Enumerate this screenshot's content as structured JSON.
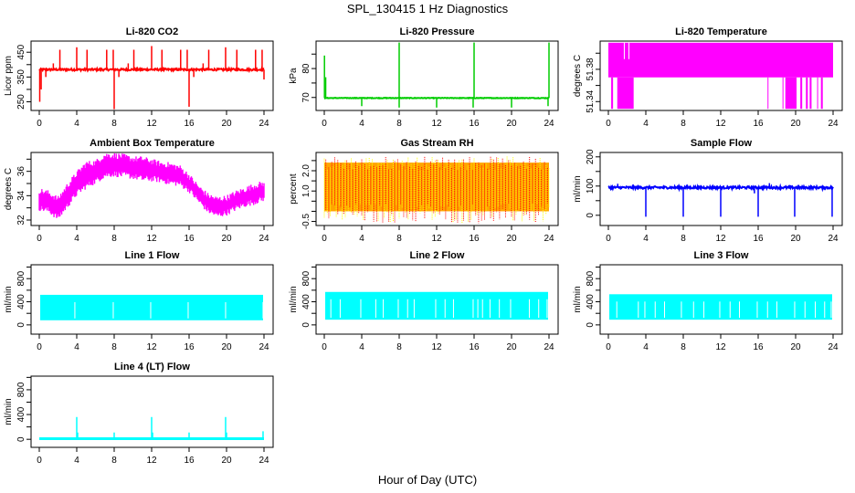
{
  "page": {
    "title": "SPL_130415  1 Hz Diagnostics",
    "xlabel": "Hour of Day (UTC)"
  },
  "chart_data": [
    {
      "type": "line",
      "title": "Li-820 CO2",
      "ylabel": "Licor ppm",
      "color": "#ff0000",
      "xlim": [
        0,
        24
      ],
      "xticks": [
        0,
        4,
        8,
        12,
        16,
        20,
        24
      ],
      "ylim": [
        215,
        495
      ],
      "yticks": [
        250,
        300,
        350,
        400,
        450
      ],
      "yticklabels": [
        "250",
        "",
        "350",
        "",
        "450"
      ],
      "baseline": 380,
      "noise": 4,
      "spikes": [
        {
          "x": 0.05,
          "y": 250
        },
        {
          "x": 0.2,
          "y": 300
        },
        {
          "x": 2.2,
          "y": 460
        },
        {
          "x": 4.0,
          "y": 470
        },
        {
          "x": 5.1,
          "y": 460
        },
        {
          "x": 7.2,
          "y": 460
        },
        {
          "x": 7.9,
          "y": 460
        },
        {
          "x": 8.0,
          "y": 220
        },
        {
          "x": 10.1,
          "y": 460
        },
        {
          "x": 12.0,
          "y": 475
        },
        {
          "x": 13.1,
          "y": 460
        },
        {
          "x": 15.1,
          "y": 460
        },
        {
          "x": 15.8,
          "y": 460
        },
        {
          "x": 16.0,
          "y": 230
        },
        {
          "x": 18.1,
          "y": 460
        },
        {
          "x": 19.9,
          "y": 470
        },
        {
          "x": 21.1,
          "y": 460
        },
        {
          "x": 23.1,
          "y": 460
        },
        {
          "x": 23.8,
          "y": 460
        },
        {
          "x": 24.0,
          "y": 340
        },
        {
          "x": 1.5,
          "y": 405
        },
        {
          "x": 9.5,
          "y": 405
        },
        {
          "x": 17.5,
          "y": 405
        },
        {
          "x": 0.7,
          "y": 350
        },
        {
          "x": 8.5,
          "y": 350
        },
        {
          "x": 16.5,
          "y": 350
        }
      ]
    },
    {
      "type": "line",
      "title": "Li-820 Pressure",
      "ylabel": "kPa",
      "color": "#00cc00",
      "xlim": [
        0,
        24
      ],
      "xticks": [
        0,
        4,
        8,
        12,
        16,
        20,
        24
      ],
      "ylim": [
        65.5,
        89.5
      ],
      "yticks": [
        70,
        75,
        80,
        85
      ],
      "yticklabels": [
        "70",
        "",
        "80",
        ""
      ],
      "baseline": 69.8,
      "noise": 0.1,
      "spikes": [
        {
          "x": 0.02,
          "y": 84.5
        },
        {
          "x": 0.15,
          "y": 77
        },
        {
          "x": 8.0,
          "y": 89
        },
        {
          "x": 16.0,
          "y": 89
        },
        {
          "x": 24.0,
          "y": 89
        },
        {
          "x": 4.0,
          "y": 67
        },
        {
          "x": 8.0,
          "y": 66.5
        },
        {
          "x": 12.0,
          "y": 66.5
        },
        {
          "x": 15.9,
          "y": 66.5
        },
        {
          "x": 20.0,
          "y": 66.5
        },
        {
          "x": 23.9,
          "y": 67
        }
      ]
    },
    {
      "type": "line",
      "title": "Li-820 Temperature",
      "ylabel": "degrees C",
      "color": "#ff00ff",
      "xlim": [
        0,
        24
      ],
      "xticks": [
        0,
        4,
        8,
        12,
        16,
        20,
        24
      ],
      "ylim": [
        51.329,
        51.415
      ],
      "yticks": [
        51.34,
        51.36,
        51.38,
        51.4
      ],
      "yticklabels": [
        "51.34",
        "",
        "51.38",
        ""
      ],
      "levels": {
        "high": 51.413,
        "mid": 51.37,
        "low": 51.331
      },
      "low_segments": [
        [
          0.3,
          0.5
        ],
        [
          0.95,
          2.7
        ],
        [
          17.0,
          17.05
        ],
        [
          18.6,
          18.7
        ],
        [
          18.9,
          20.1
        ],
        [
          20.5,
          20.7
        ],
        [
          21.1,
          21.3
        ],
        [
          21.5,
          21.7
        ],
        [
          22.3,
          22.4
        ],
        [
          22.7,
          22.9
        ]
      ]
    },
    {
      "type": "area",
      "title": "Ambient Box Temperature",
      "ylabel": "degrees C",
      "color": "#ff00ff",
      "xlim": [
        0,
        24
      ],
      "xticks": [
        0,
        4,
        8,
        12,
        16,
        20,
        24
      ],
      "ylim": [
        31.55,
        37.55
      ],
      "yticks": [
        32,
        33,
        34,
        35,
        36,
        37
      ],
      "yticklabels": [
        "32",
        "",
        "34",
        "",
        "36",
        ""
      ],
      "envelope_x": [
        0,
        1,
        2,
        3,
        4,
        5,
        6,
        7,
        8,
        9,
        10,
        11,
        12,
        13,
        14,
        15,
        16,
        17,
        18,
        19,
        20,
        21,
        22,
        23,
        24
      ],
      "envelope_min": [
        33.0,
        32.8,
        32.2,
        33.2,
        34.2,
        34.8,
        35.2,
        35.7,
        35.8,
        35.7,
        35.6,
        35.4,
        35.4,
        35.3,
        35.1,
        35.0,
        34.5,
        33.6,
        32.8,
        32.4,
        32.6,
        33.0,
        33.3,
        33.5,
        33.8
      ],
      "envelope_max": [
        34.4,
        34.2,
        33.7,
        34.8,
        35.8,
        36.6,
        36.7,
        37.3,
        37.3,
        37.2,
        37.0,
        37.0,
        36.8,
        36.6,
        36.5,
        36.3,
        35.6,
        34.7,
        34.0,
        33.7,
        33.8,
        34.2,
        34.5,
        34.8,
        35.0
      ]
    },
    {
      "type": "area",
      "title": "Gas Stream RH",
      "ylabel": "percent",
      "color": "#ffa500",
      "color2": "#ff0000",
      "color3": "#ffff00",
      "xlim": [
        0,
        24
      ],
      "xticks": [
        0,
        4,
        8,
        12,
        16,
        20,
        24
      ],
      "ylim": [
        -0.7,
        2.9
      ],
      "yticks": [
        -0.5,
        0,
        0.5,
        1.0,
        1.5,
        2.0,
        2.5
      ],
      "yticklabels": [
        "-0.5",
        "",
        "",
        "1.0",
        "",
        "2.0",
        ""
      ],
      "band_min": 0.0,
      "band_max": 2.4,
      "range": [
        -0.6,
        2.7
      ]
    },
    {
      "type": "line",
      "title": "Sample Flow",
      "ylabel": "ml/min",
      "color": "#0000ff",
      "xlim": [
        0,
        24
      ],
      "xticks": [
        0,
        4,
        8,
        12,
        16,
        20,
        24
      ],
      "ylim": [
        -35,
        215
      ],
      "yticks": [
        0,
        50,
        100,
        150,
        200
      ],
      "yticklabels": [
        "0",
        "",
        "100",
        "",
        "200"
      ],
      "baseline": 95,
      "noise": 4,
      "spikes": [
        {
          "x": 4.0,
          "y": -5
        },
        {
          "x": 8.0,
          "y": -5
        },
        {
          "x": 12.0,
          "y": -5
        },
        {
          "x": 16.0,
          "y": -5
        },
        {
          "x": 19.9,
          "y": -5
        },
        {
          "x": 23.9,
          "y": -5
        },
        {
          "x": 1.0,
          "y": 108
        },
        {
          "x": 17.2,
          "y": 110
        },
        {
          "x": 15.6,
          "y": 75
        }
      ]
    },
    {
      "type": "area",
      "title": "Line 1 Flow",
      "ylabel": "ml/min",
      "color": "#00ffff",
      "xlim": [
        0,
        24
      ],
      "xticks": [
        0,
        4,
        8,
        12,
        16,
        20,
        24
      ],
      "ylim": [
        -160,
        1040
      ],
      "yticks": [
        0,
        200,
        400,
        600,
        800,
        1000
      ],
      "yticklabels": [
        "0",
        "",
        "400",
        "",
        "800",
        ""
      ],
      "band_min": 80,
      "band_max": 520,
      "gaps": [
        3.8,
        7.9,
        11.9,
        15.9,
        19.9,
        23.9
      ]
    },
    {
      "type": "area",
      "title": "Line 2 Flow",
      "ylabel": "ml/min",
      "color": "#00ffff",
      "xlim": [
        0,
        24
      ],
      "xticks": [
        0,
        4,
        8,
        12,
        16,
        20,
        24
      ],
      "ylim": [
        -160,
        1040
      ],
      "yticks": [
        0,
        200,
        400,
        600,
        800,
        1000
      ],
      "yticklabels": [
        "0",
        "",
        "400",
        "",
        "800",
        ""
      ],
      "band_min": 90,
      "band_max": 570,
      "gaps": [
        0.7,
        1.7,
        3.9,
        5.5,
        6.3,
        7.9,
        8.9,
        9.6,
        11.9,
        12.9,
        13.8,
        15.9,
        16.4,
        16.9,
        17.7,
        18.7,
        19.9,
        21.9,
        22.9,
        23.8
      ]
    },
    {
      "type": "area",
      "title": "Line 3 Flow",
      "ylabel": "ml/min",
      "color": "#00ffff",
      "xlim": [
        0,
        24
      ],
      "xticks": [
        0,
        4,
        8,
        12,
        16,
        20,
        24
      ],
      "ylim": [
        -160,
        1040
      ],
      "yticks": [
        0,
        200,
        400,
        600,
        800,
        1000
      ],
      "yticklabels": [
        "0",
        "",
        "400",
        "",
        "800",
        ""
      ],
      "band_min": 90,
      "band_max": 530,
      "gaps": [
        0.9,
        3.2,
        3.9,
        5.0,
        6.0,
        7.8,
        9.1,
        10.2,
        11.9,
        13.0,
        14.0,
        15.9,
        17.0,
        18.0,
        19.9,
        21.0,
        22.1,
        23.1,
        23.8
      ]
    },
    {
      "type": "line",
      "title": "Line 4 (LT) Flow",
      "ylabel": "ml/min",
      "color": "#00ffff",
      "xlim": [
        0,
        24
      ],
      "xticks": [
        0,
        4,
        8,
        12,
        16,
        20,
        24
      ],
      "ylim": [
        -130,
        1020
      ],
      "yticks": [
        0,
        200,
        400,
        600,
        800,
        1000
      ],
      "yticklabels": [
        "0",
        "",
        "400",
        "",
        "800",
        ""
      ],
      "baseline": 10,
      "spikes": [
        {
          "x": 4.0,
          "y": 360
        },
        {
          "x": 4.1,
          "y": 110
        },
        {
          "x": 8.0,
          "y": 110
        },
        {
          "x": 12.0,
          "y": 360
        },
        {
          "x": 12.1,
          "y": 110
        },
        {
          "x": 16.0,
          "y": 110
        },
        {
          "x": 19.9,
          "y": 360
        },
        {
          "x": 20.0,
          "y": 110
        },
        {
          "x": 23.9,
          "y": 130
        }
      ]
    }
  ]
}
